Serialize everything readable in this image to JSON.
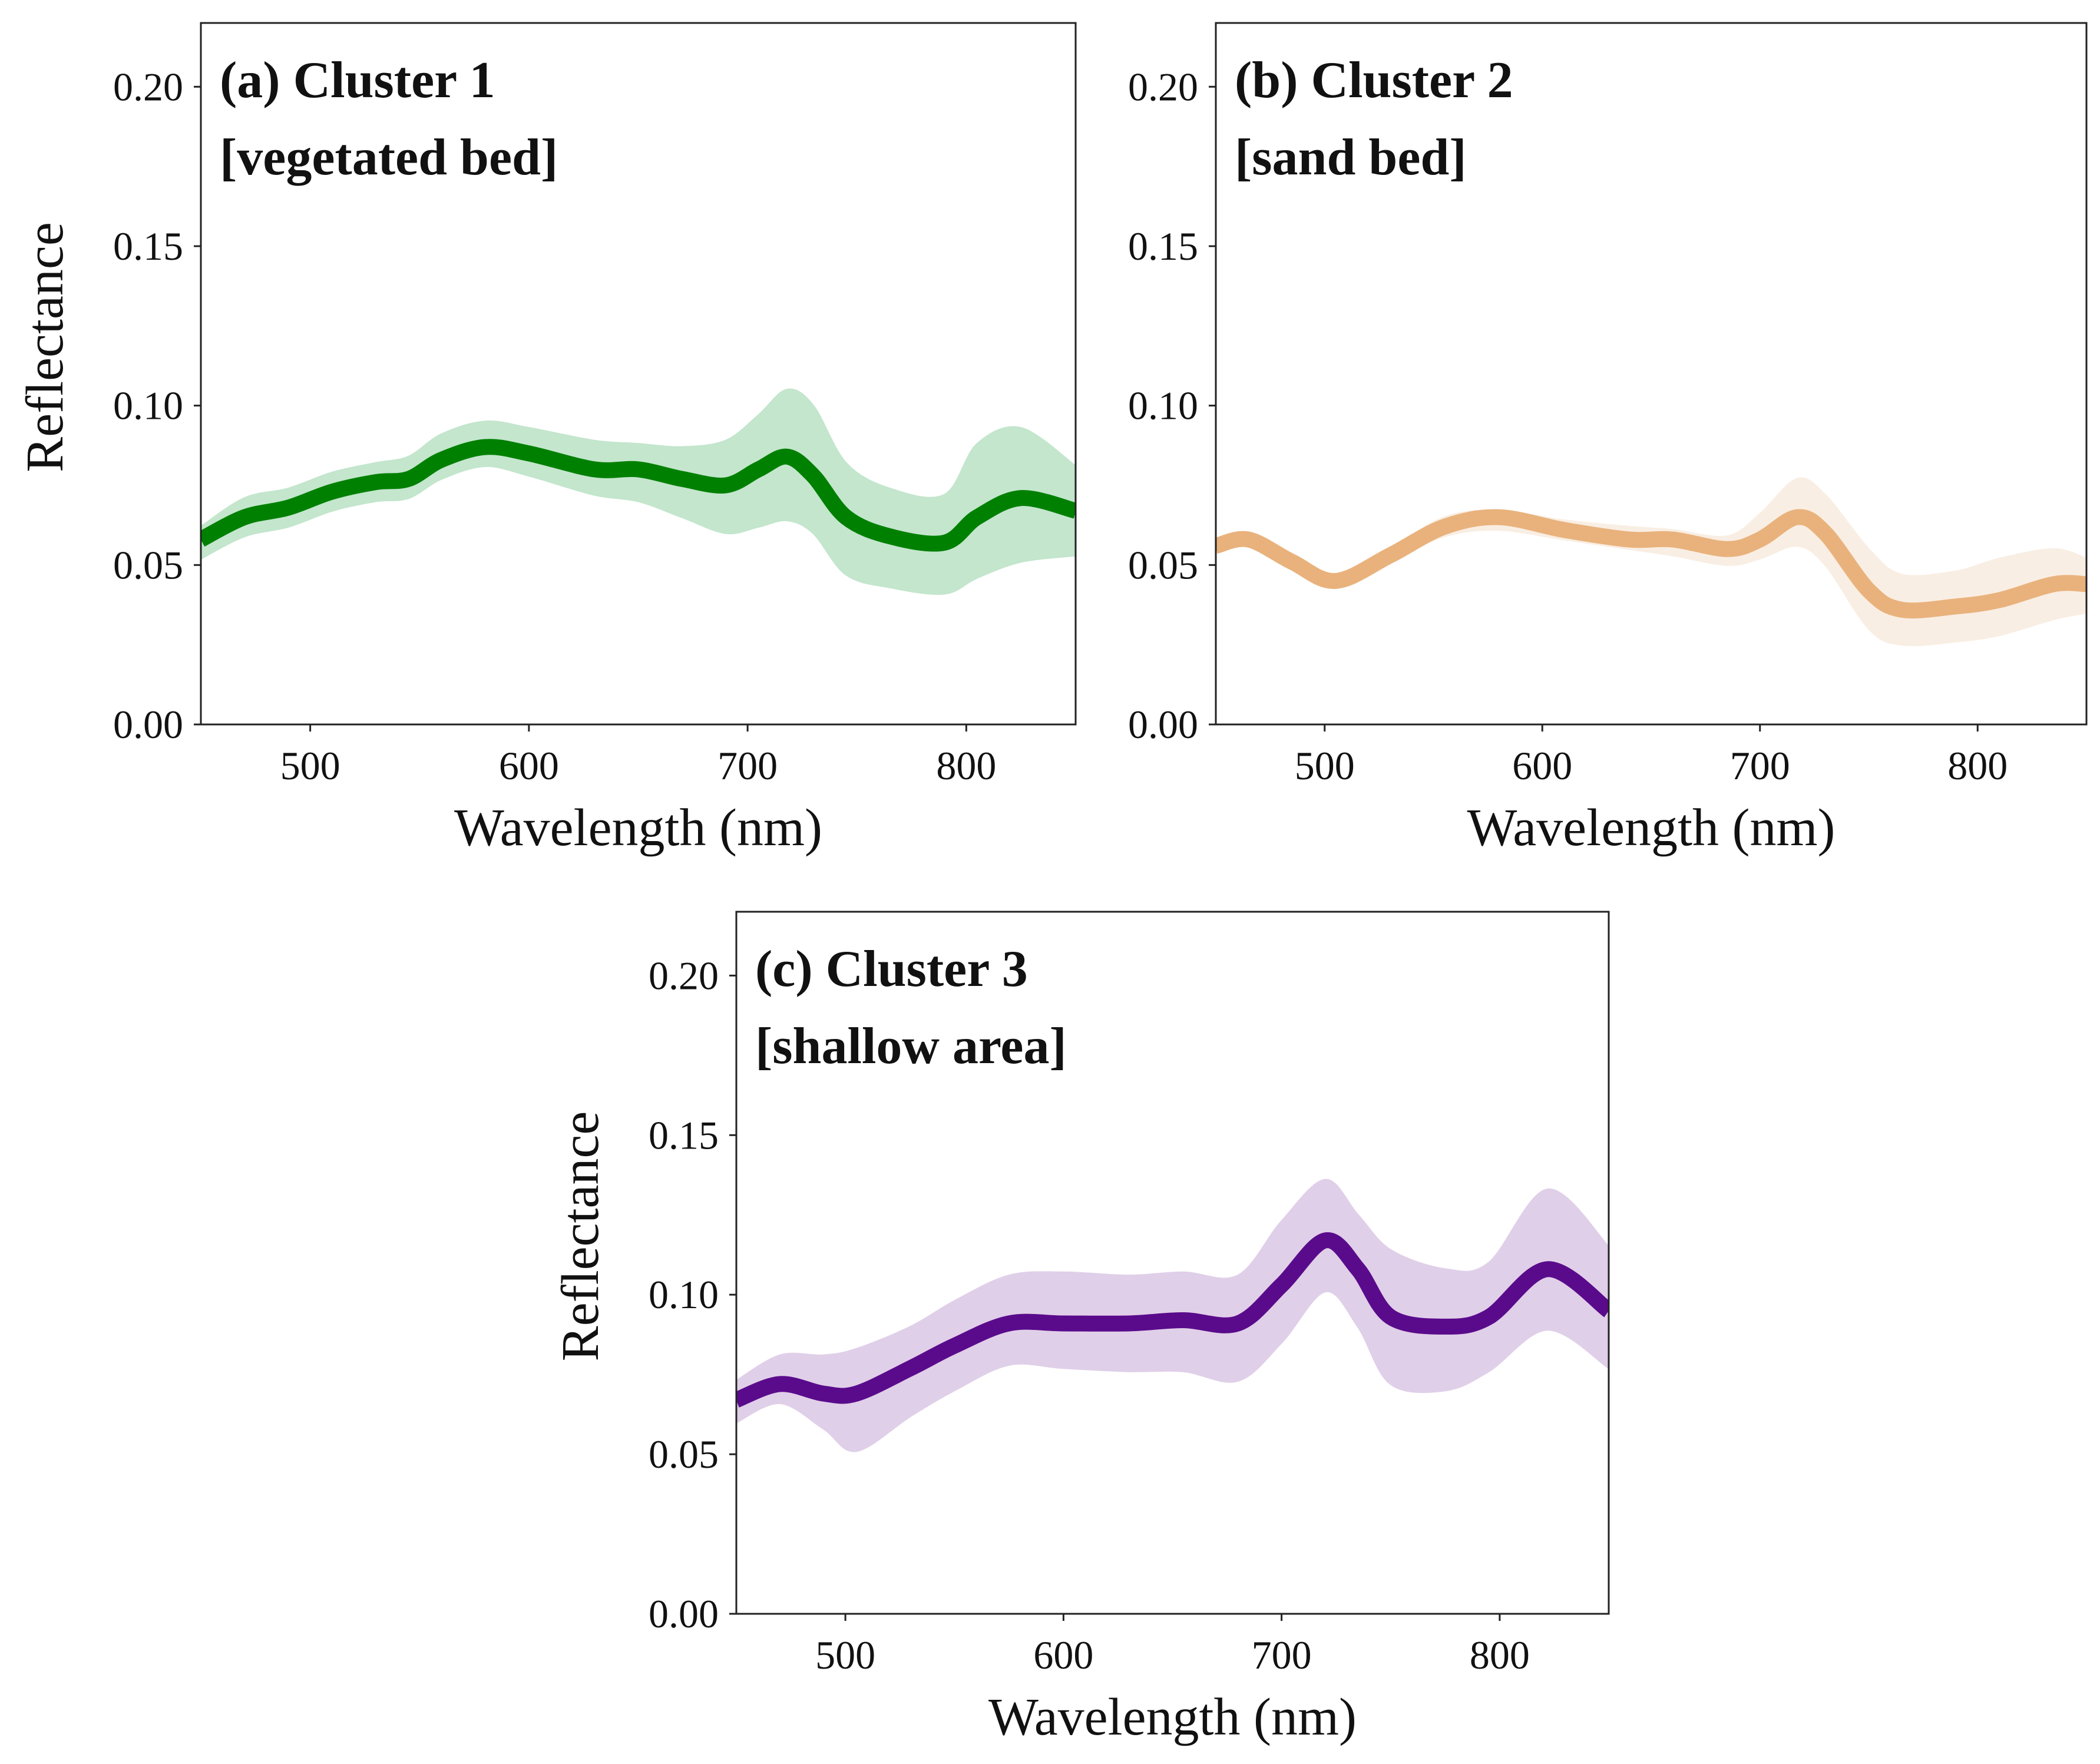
{
  "chart_data": [
    {
      "type": "line",
      "title": "(a) Cluster 1",
      "subtitle": "[vegetated bed]",
      "xlabel": "Wavelength (nm)",
      "ylabel": "Reflectance",
      "xlim": [
        450,
        850
      ],
      "ylim": [
        0,
        0.22
      ],
      "xticks": [
        500,
        600,
        700,
        800
      ],
      "yticks": [
        "0.00",
        "0.05",
        "0.10",
        "0.15",
        "0.20"
      ],
      "line_color": "#008000",
      "band_color": "#c3e6cd",
      "x": [
        450,
        470,
        490,
        510,
        530,
        545,
        560,
        580,
        600,
        630,
        650,
        670,
        690,
        705,
        718,
        730,
        745,
        765,
        790,
        805,
        825,
        850
      ],
      "mean": [
        0.058,
        0.065,
        0.068,
        0.073,
        0.076,
        0.077,
        0.083,
        0.087,
        0.085,
        0.08,
        0.08,
        0.077,
        0.075,
        0.08,
        0.084,
        0.078,
        0.065,
        0.059,
        0.057,
        0.065,
        0.071,
        0.067
      ],
      "lower": [
        0.052,
        0.059,
        0.062,
        0.067,
        0.07,
        0.071,
        0.077,
        0.081,
        0.078,
        0.072,
        0.07,
        0.065,
        0.06,
        0.062,
        0.064,
        0.06,
        0.047,
        0.043,
        0.041,
        0.046,
        0.051,
        0.053
      ],
      "upper": [
        0.062,
        0.071,
        0.074,
        0.079,
        0.082,
        0.084,
        0.091,
        0.095,
        0.093,
        0.089,
        0.088,
        0.087,
        0.089,
        0.097,
        0.105,
        0.1,
        0.082,
        0.074,
        0.072,
        0.088,
        0.093,
        0.081
      ]
    },
    {
      "type": "line",
      "title": "(b) Cluster 2",
      "subtitle": "[sand bed]",
      "xlabel": "Wavelength (nm)",
      "ylabel": "",
      "xlim": [
        450,
        850
      ],
      "ylim": [
        0,
        0.22
      ],
      "xticks": [
        500,
        600,
        700,
        800
      ],
      "yticks": [
        "0.00",
        "0.05",
        "0.10",
        "0.15",
        "0.20"
      ],
      "line_color": "#e9b27c",
      "band_color": "#f9eee3",
      "x": [
        450,
        465,
        485,
        505,
        530,
        555,
        580,
        610,
        640,
        660,
        685,
        700,
        717,
        730,
        750,
        765,
        790,
        810,
        835,
        850
      ],
      "mean": [
        0.056,
        0.058,
        0.051,
        0.045,
        0.053,
        0.062,
        0.065,
        0.061,
        0.058,
        0.058,
        0.055,
        0.058,
        0.065,
        0.06,
        0.042,
        0.036,
        0.037,
        0.039,
        0.044,
        0.044
      ],
      "lower": [
        0.054,
        0.056,
        0.049,
        0.043,
        0.051,
        0.059,
        0.061,
        0.058,
        0.055,
        0.053,
        0.05,
        0.052,
        0.056,
        0.05,
        0.03,
        0.025,
        0.026,
        0.028,
        0.033,
        0.035
      ],
      "upper": [
        0.058,
        0.06,
        0.053,
        0.047,
        0.055,
        0.065,
        0.067,
        0.064,
        0.062,
        0.061,
        0.059,
        0.066,
        0.077,
        0.072,
        0.055,
        0.047,
        0.048,
        0.052,
        0.055,
        0.052
      ]
    },
    {
      "type": "line",
      "title": "(c) Cluster 3",
      "subtitle": "[shallow area]",
      "xlabel": "Wavelength (nm)",
      "ylabel": "Reflectance",
      "xlim": [
        450,
        850
      ],
      "ylim": [
        0,
        0.22
      ],
      "xticks": [
        500,
        600,
        700,
        800
      ],
      "yticks": [
        "0.00",
        "0.05",
        "0.10",
        "0.15",
        "0.20"
      ],
      "line_color": "#5a0b8c",
      "band_color": "#e0cfe8",
      "x": [
        450,
        470,
        490,
        505,
        530,
        550,
        575,
        600,
        630,
        655,
        680,
        700,
        720,
        735,
        750,
        775,
        795,
        822,
        850
      ],
      "mean": [
        0.067,
        0.072,
        0.069,
        0.069,
        0.077,
        0.084,
        0.091,
        0.091,
        0.091,
        0.092,
        0.091,
        0.103,
        0.117,
        0.108,
        0.093,
        0.09,
        0.093,
        0.108,
        0.095
      ],
      "lower": [
        0.06,
        0.066,
        0.058,
        0.051,
        0.062,
        0.07,
        0.078,
        0.077,
        0.076,
        0.076,
        0.073,
        0.085,
        0.101,
        0.09,
        0.072,
        0.07,
        0.076,
        0.089,
        0.077
      ],
      "upper": [
        0.073,
        0.081,
        0.081,
        0.083,
        0.09,
        0.098,
        0.106,
        0.107,
        0.106,
        0.107,
        0.106,
        0.123,
        0.136,
        0.125,
        0.114,
        0.108,
        0.11,
        0.133,
        0.115
      ]
    }
  ]
}
